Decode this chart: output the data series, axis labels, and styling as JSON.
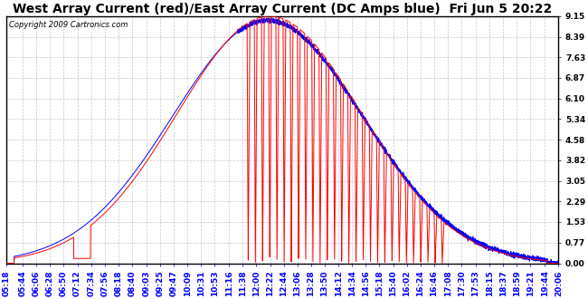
{
  "title": "West Array Current (red)/East Array Current (DC Amps blue)  Fri Jun 5 20:22",
  "copyright": "Copyright 2009 Cartronics.com",
  "yticks": [
    0.0,
    0.77,
    1.53,
    2.29,
    3.05,
    3.82,
    4.58,
    5.34,
    6.1,
    6.87,
    7.63,
    8.39,
    9.15
  ],
  "ylim": [
    0.0,
    9.15
  ],
  "xtick_labels": [
    "05:18",
    "05:44",
    "06:06",
    "06:28",
    "06:50",
    "07:12",
    "07:34",
    "07:56",
    "08:18",
    "08:40",
    "09:03",
    "09:25",
    "09:47",
    "10:09",
    "10:31",
    "10:53",
    "11:16",
    "11:38",
    "12:00",
    "12:22",
    "12:44",
    "13:06",
    "13:28",
    "13:50",
    "14:12",
    "14:34",
    "14:56",
    "15:18",
    "15:40",
    "16:02",
    "16:24",
    "16:46",
    "17:08",
    "17:30",
    "17:53",
    "18:15",
    "18:37",
    "18:59",
    "19:21",
    "19:44",
    "20:06"
  ],
  "bg_color": "#ffffff",
  "grid_color": "#bbbbbb",
  "line_red": "#ff0000",
  "line_blue": "#0000ff",
  "title_fontsize": 10,
  "tick_fontsize": 6.5,
  "copyright_fontsize": 6
}
